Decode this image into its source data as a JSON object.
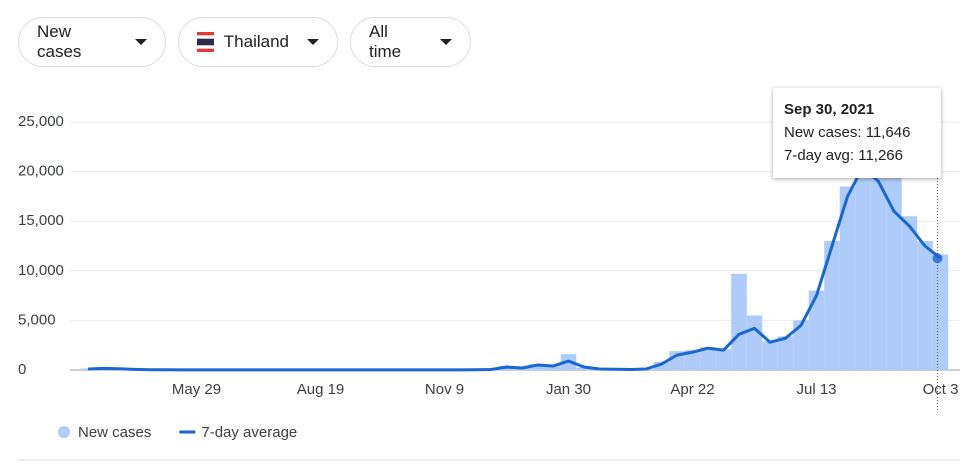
{
  "controls": [
    "New cases",
    "Thailand",
    "All time"
  ],
  "chart_data": {
    "type": "bar-line",
    "categories": [
      null,
      null,
      null,
      null,
      null,
      null,
      null,
      "May 29",
      null,
      null,
      null,
      null,
      null,
      null,
      null,
      "Aug 19",
      null,
      null,
      null,
      null,
      null,
      null,
      null,
      "Nov 9",
      null,
      null,
      null,
      null,
      null,
      null,
      null,
      "Jan 30",
      null,
      null,
      null,
      null,
      null,
      null,
      null,
      "Apr 22",
      null,
      null,
      null,
      null,
      null,
      null,
      null,
      "Jul 13",
      null,
      null,
      null,
      null,
      null,
      null,
      null,
      "Oct 3"
    ],
    "series": [
      {
        "name": "New cases",
        "color": "#aecbfa",
        "kind": "bar",
        "values": [
          150,
          180,
          90,
          50,
          30,
          20,
          10,
          10,
          10,
          10,
          10,
          10,
          10,
          10,
          10,
          10,
          10,
          10,
          10,
          10,
          10,
          10,
          10,
          10,
          10,
          30,
          70,
          400,
          250,
          600,
          500,
          1600,
          250,
          90,
          70,
          40,
          120,
          800,
          1900,
          2000,
          2300,
          2100,
          9700,
          5500,
          2900,
          3400,
          5000,
          8000,
          13000,
          18500,
          21000,
          20000,
          19500,
          15500,
          13000,
          11646
        ]
      },
      {
        "name": "7-day average",
        "color": "#1967d2",
        "kind": "line",
        "values": [
          100,
          160,
          120,
          60,
          30,
          20,
          10,
          10,
          10,
          10,
          10,
          10,
          10,
          10,
          10,
          10,
          10,
          10,
          10,
          10,
          10,
          10,
          10,
          10,
          10,
          20,
          50,
          300,
          200,
          500,
          400,
          900,
          300,
          100,
          80,
          50,
          100,
          600,
          1500,
          1800,
          2200,
          2000,
          3600,
          4200,
          2800,
          3200,
          4500,
          7500,
          12500,
          17500,
          20500,
          19000,
          16000,
          14500,
          12500,
          11266
        ]
      }
    ],
    "ylim": [
      0,
      25000
    ],
    "yticks": [
      0,
      {
        "value": 5000,
        "label": "5,000"
      },
      {
        "value": 10000,
        "label": "10,000"
      },
      {
        "value": 15000,
        "label": "15,000"
      },
      {
        "value": 20000,
        "label": "20,000"
      },
      {
        "value": 25000,
        "label": "25,000"
      }
    ],
    "grid": true,
    "tooltip": {
      "title": "Sep 30, 2021",
      "lines": [
        "New cases: 11,646",
        "7-day avg: 11,266"
      ]
    }
  }
}
